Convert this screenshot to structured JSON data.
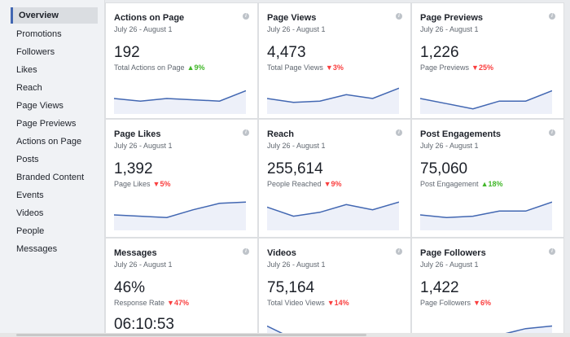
{
  "sidebar": {
    "items": [
      {
        "label": "Overview",
        "active": true
      },
      {
        "label": "Promotions"
      },
      {
        "label": "Followers"
      },
      {
        "label": "Likes"
      },
      {
        "label": "Reach"
      },
      {
        "label": "Page Views"
      },
      {
        "label": "Page Previews"
      },
      {
        "label": "Actions on Page"
      },
      {
        "label": "Posts"
      },
      {
        "label": "Branded Content"
      },
      {
        "label": "Events"
      },
      {
        "label": "Videos"
      },
      {
        "label": "People"
      },
      {
        "label": "Messages"
      }
    ]
  },
  "colors": {
    "accent": "#4267b2",
    "up": "#42b72a",
    "down": "#fa3e3e",
    "spark_fill": "#edf0f9"
  },
  "cards": [
    {
      "title": "Actions on Page",
      "date": "July 26 - August 1",
      "value": "192",
      "sublabel": "Total Actions on Page",
      "delta": "9%",
      "trend": "up",
      "spark": [
        6,
        5,
        6,
        5.5,
        5,
        9
      ]
    },
    {
      "title": "Page Views",
      "date": "July 26 - August 1",
      "value": "4,473",
      "sublabel": "Total Page Views",
      "delta": "3%",
      "trend": "down",
      "spark": [
        6,
        4.5,
        5,
        7.5,
        6,
        10
      ]
    },
    {
      "title": "Page Previews",
      "date": "July 26 - August 1",
      "value": "1,226",
      "sublabel": "Page Previews",
      "delta": "25%",
      "trend": "down",
      "spark": [
        6,
        4,
        2,
        5,
        5,
        9
      ]
    },
    {
      "title": "Page Likes",
      "date": "July 26 - August 1",
      "value": "1,392",
      "sublabel": "Page Likes",
      "delta": "5%",
      "trend": "down",
      "spark": [
        6,
        5.5,
        5,
        8,
        10.5,
        11
      ]
    },
    {
      "title": "Reach",
      "date": "July 26 - August 1",
      "value": "255,614",
      "sublabel": "People Reached",
      "delta": "9%",
      "trend": "down",
      "spark": [
        9,
        5.5,
        7,
        10,
        8,
        11
      ]
    },
    {
      "title": "Post Engagements",
      "date": "July 26 - August 1",
      "value": "75,060",
      "sublabel": "Post Engagement",
      "delta": "18%",
      "trend": "up",
      "spark": [
        6,
        5,
        5.5,
        7.5,
        7.5,
        11
      ]
    },
    {
      "title": "Messages",
      "date": "July 26 - August 1",
      "value": "46%",
      "sublabel": "Response Rate",
      "delta": "47%",
      "trend": "down",
      "value2": "06:10:53",
      "spark": []
    },
    {
      "title": "Videos",
      "date": "July 26 - August 1",
      "value": "75,164",
      "sublabel": "Total Video Views",
      "delta": "14%",
      "trend": "down",
      "spark": [
        9,
        4,
        5,
        4.5,
        5,
        6
      ]
    },
    {
      "title": "Page Followers",
      "date": "July 26 - August 1",
      "value": "1,422",
      "sublabel": "Page Followers",
      "delta": "6%",
      "trend": "down",
      "spark": [
        3,
        3,
        4,
        5.5,
        8,
        9
      ]
    }
  ]
}
